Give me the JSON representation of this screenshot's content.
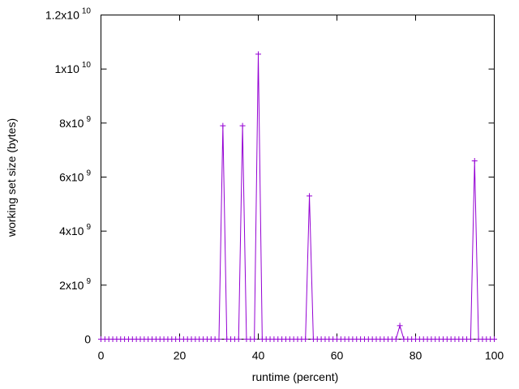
{
  "chart_data": {
    "type": "line",
    "title": "",
    "xlabel": "runtime (percent)",
    "ylabel": "working set size (bytes)",
    "xlim": [
      0,
      100
    ],
    "ylim": [
      0,
      12000000000
    ],
    "x_ticks": [
      0,
      20,
      40,
      60,
      80,
      100
    ],
    "x_tick_labels": [
      "0",
      "20",
      "40",
      "60",
      "80",
      "100"
    ],
    "y_ticks": [
      0,
      2000000000,
      4000000000,
      6000000000,
      8000000000,
      10000000000,
      12000000000
    ],
    "y_tick_labels": [
      {
        "base": "0",
        "exp": ""
      },
      {
        "base": "2x10",
        "exp": "9"
      },
      {
        "base": "4x10",
        "exp": "9"
      },
      {
        "base": "6x10",
        "exp": "9"
      },
      {
        "base": "8x10",
        "exp": "9"
      },
      {
        "base": "1x10",
        "exp": "10"
      },
      {
        "base": "1.2x10",
        "exp": "10"
      }
    ],
    "grid": false,
    "series": [
      {
        "color": "#9400d3",
        "marker": "plus",
        "x": [
          0,
          1,
          2,
          3,
          4,
          5,
          6,
          7,
          8,
          9,
          10,
          11,
          12,
          13,
          14,
          15,
          16,
          17,
          18,
          19,
          20,
          21,
          22,
          23,
          24,
          25,
          26,
          27,
          28,
          29,
          30,
          31,
          32,
          33,
          34,
          35,
          36,
          37,
          38,
          39,
          40,
          41,
          42,
          43,
          44,
          45,
          46,
          47,
          48,
          49,
          50,
          51,
          52,
          53,
          54,
          55,
          56,
          57,
          58,
          59,
          60,
          61,
          62,
          63,
          64,
          65,
          66,
          67,
          68,
          69,
          70,
          71,
          72,
          73,
          74,
          75,
          76,
          77,
          78,
          79,
          80,
          81,
          82,
          83,
          84,
          85,
          86,
          87,
          88,
          89,
          90,
          91,
          92,
          93,
          94,
          95,
          96,
          97,
          98,
          99,
          100
        ],
        "y": [
          0,
          0,
          0,
          0,
          0,
          0,
          0,
          0,
          0,
          0,
          0,
          0,
          0,
          0,
          0,
          0,
          0,
          0,
          0,
          0,
          0,
          0,
          0,
          0,
          0,
          0,
          0,
          0,
          0,
          0,
          0,
          7900000000,
          0,
          0,
          0,
          0,
          7900000000,
          0,
          0,
          0,
          10550000000,
          0,
          0,
          0,
          0,
          0,
          0,
          0,
          0,
          0,
          0,
          0,
          0,
          5300000000,
          0,
          0,
          0,
          0,
          0,
          0,
          0,
          0,
          0,
          0,
          0,
          0,
          0,
          0,
          0,
          0,
          0,
          0,
          0,
          0,
          0,
          0,
          500000000,
          0,
          0,
          0,
          0,
          0,
          0,
          0,
          0,
          0,
          0,
          0,
          0,
          0,
          0,
          0,
          0,
          0,
          0,
          6600000000,
          0,
          0,
          0,
          0,
          0
        ]
      }
    ]
  }
}
